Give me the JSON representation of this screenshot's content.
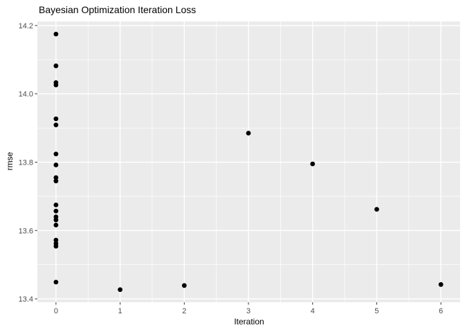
{
  "title": "Bayesian Optimization Iteration Loss",
  "chart_data": {
    "type": "scatter",
    "title": "Bayesian Optimization Iteration Loss",
    "xlabel": "Iteration",
    "ylabel": "rmse",
    "xlim": [
      -0.29,
      6.3
    ],
    "ylim": [
      13.39,
      14.212
    ],
    "x_ticks": [
      0,
      1,
      2,
      3,
      4,
      5,
      6
    ],
    "x_tick_labels": [
      "0",
      "1",
      "2",
      "3",
      "4",
      "5",
      "6"
    ],
    "y_ticks": [
      13.4,
      13.6,
      13.8,
      14.0,
      14.2
    ],
    "y_tick_labels": [
      "13.4",
      "13.6",
      "13.8",
      "14.0",
      "14.2"
    ],
    "grid": "major+minor",
    "legend": "none",
    "theme": {
      "panel_bg": "#EBEBEB",
      "grid_color": "#FFFFFF",
      "point_color": "#000000",
      "axis_text_color": "#4D4D4D",
      "tick_mark_color": "#333333"
    },
    "points": [
      {
        "x": 0,
        "y": 14.175
      },
      {
        "x": 0,
        "y": 14.082
      },
      {
        "x": 0,
        "y": 14.033
      },
      {
        "x": 0,
        "y": 14.026
      },
      {
        "x": 0,
        "y": 13.927
      },
      {
        "x": 0,
        "y": 13.909
      },
      {
        "x": 0,
        "y": 13.824
      },
      {
        "x": 0,
        "y": 13.792
      },
      {
        "x": 0,
        "y": 13.755
      },
      {
        "x": 0,
        "y": 13.745
      },
      {
        "x": 0,
        "y": 13.675
      },
      {
        "x": 0,
        "y": 13.657
      },
      {
        "x": 0,
        "y": 13.64
      },
      {
        "x": 0,
        "y": 13.631
      },
      {
        "x": 0,
        "y": 13.616
      },
      {
        "x": 0,
        "y": 13.572
      },
      {
        "x": 0,
        "y": 13.562
      },
      {
        "x": 0,
        "y": 13.554
      },
      {
        "x": 0,
        "y": 13.449
      },
      {
        "x": 1,
        "y": 13.427
      },
      {
        "x": 2,
        "y": 13.439
      },
      {
        "x": 3,
        "y": 13.885
      },
      {
        "x": 4,
        "y": 13.795
      },
      {
        "x": 5,
        "y": 13.662
      },
      {
        "x": 6,
        "y": 13.442
      }
    ]
  }
}
